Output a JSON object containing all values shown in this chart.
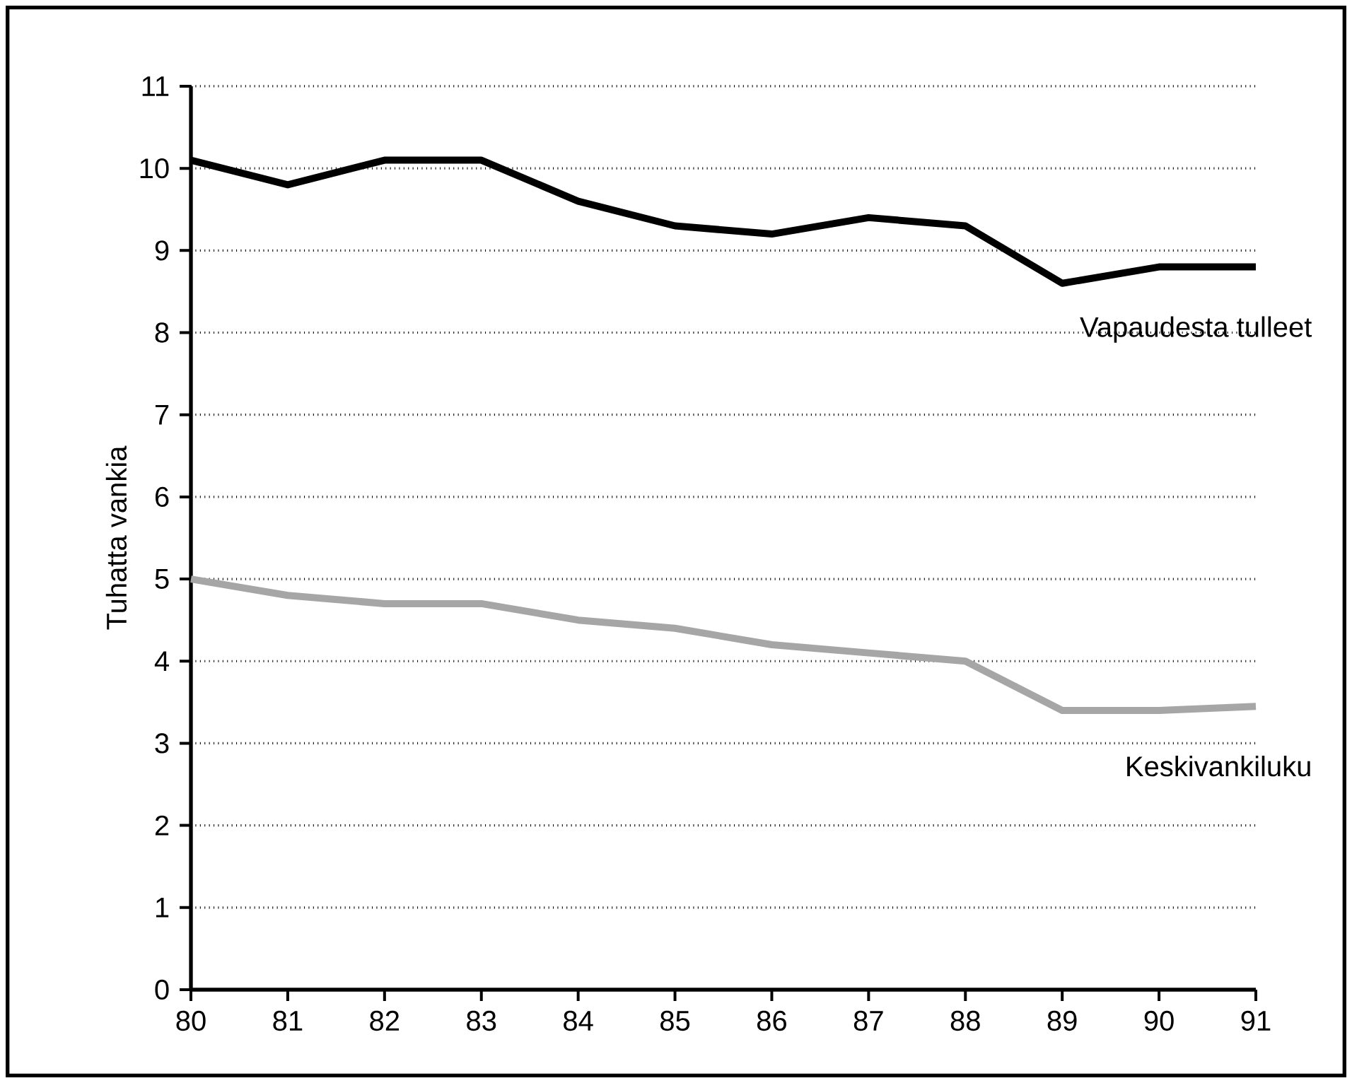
{
  "chart_data": {
    "type": "line",
    "ylabel": "Tuhatta vankia",
    "x": [
      80,
      81,
      82,
      83,
      84,
      85,
      86,
      87,
      88,
      89,
      90,
      91
    ],
    "series": [
      {
        "name": "Vapaudesta tulleet",
        "color": "#000000",
        "values": [
          10.1,
          9.8,
          10.1,
          10.1,
          9.6,
          9.3,
          9.2,
          9.4,
          9.3,
          8.6,
          8.8,
          8.8
        ]
      },
      {
        "name": "Keskivankiluku",
        "color": "#a6a6a6",
        "values": [
          5.0,
          4.8,
          4.7,
          4.7,
          4.5,
          4.4,
          4.2,
          4.1,
          4.0,
          3.4,
          3.4,
          3.45
        ]
      }
    ],
    "xlim": [
      80,
      91
    ],
    "ylim": [
      0,
      11
    ],
    "xticks": [
      80,
      81,
      82,
      83,
      84,
      85,
      86,
      87,
      88,
      89,
      90,
      91
    ],
    "yticks": [
      0,
      1,
      2,
      3,
      4,
      5,
      6,
      7,
      8,
      9,
      10,
      11
    ],
    "grid": "y",
    "legend": false
  }
}
